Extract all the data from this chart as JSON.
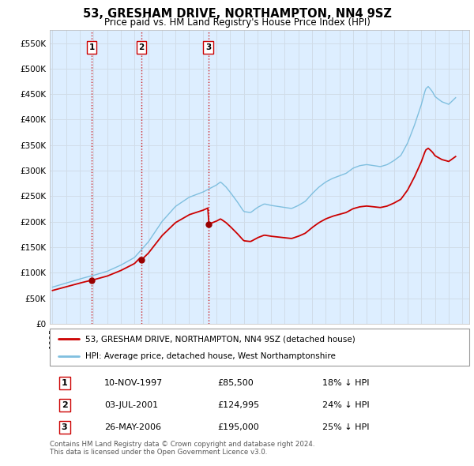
{
  "title": "53, GRESHAM DRIVE, NORTHAMPTON, NN4 9SZ",
  "subtitle": "Price paid vs. HM Land Registry's House Price Index (HPI)",
  "hpi_line_color": "#7fbfdf",
  "price_line_color": "#cc0000",
  "marker_color": "#990000",
  "vline_color": "#cc0000",
  "grid_color": "#d0dce8",
  "bg_color": "#ddeeff",
  "ylim": [
    0,
    575000
  ],
  "yticks": [
    0,
    50000,
    100000,
    150000,
    200000,
    250000,
    300000,
    350000,
    400000,
    450000,
    500000,
    550000
  ],
  "transactions": [
    {
      "label": 1,
      "date": "10-NOV-1997",
      "price": 85500,
      "x": 1997.87,
      "pct": "18%",
      "dir": "↓"
    },
    {
      "label": 2,
      "date": "03-JUL-2001",
      "price": 124995,
      "x": 2001.5,
      "pct": "24%",
      "dir": "↓"
    },
    {
      "label": 3,
      "date": "26-MAY-2006",
      "price": 195000,
      "x": 2006.4,
      "pct": "25%",
      "dir": "↓"
    }
  ],
  "legend_entries": [
    {
      "label": "53, GRESHAM DRIVE, NORTHAMPTON, NN4 9SZ (detached house)",
      "color": "#cc0000"
    },
    {
      "label": "HPI: Average price, detached house, West Northamptonshire",
      "color": "#7fbfdf"
    }
  ],
  "footer_text": "Contains HM Land Registry data © Crown copyright and database right 2024.\nThis data is licensed under the Open Government Licence v3.0."
}
